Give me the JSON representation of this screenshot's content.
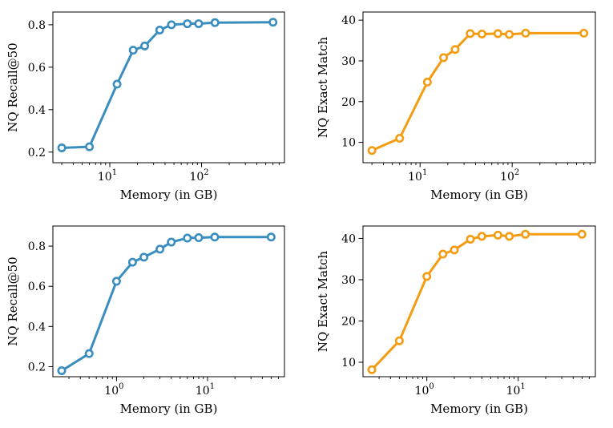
{
  "chart_data": [
    {
      "type": "line",
      "xscale": "log",
      "xlim": [
        2.4,
        800
      ],
      "ylim": [
        0.15,
        0.86
      ],
      "yticks": [
        0.2,
        0.4,
        0.6,
        0.8
      ],
      "ytick_labels": [
        "0.2",
        "0.4",
        "0.6",
        "0.8"
      ],
      "xticks": [
        10,
        100
      ],
      "xtick_labels": [
        {
          "base": "10",
          "exp": "1"
        },
        {
          "base": "10",
          "exp": "2"
        }
      ],
      "xlabel": "Memory (in GB)",
      "ylabel": "NQ Recall@50",
      "color": "#3a8ebf",
      "x": [
        3,
        6,
        12,
        18,
        24,
        35,
        47,
        70,
        93,
        140,
        600
      ],
      "y": [
        0.22,
        0.225,
        0.52,
        0.68,
        0.7,
        0.775,
        0.8,
        0.805,
        0.805,
        0.81,
        0.812
      ]
    },
    {
      "type": "line",
      "xscale": "log",
      "xlim": [
        2.4,
        800
      ],
      "ylim": [
        5,
        42
      ],
      "yticks": [
        10,
        20,
        30,
        40
      ],
      "ytick_labels": [
        "10",
        "20",
        "30",
        "40"
      ],
      "xticks": [
        10,
        100
      ],
      "xtick_labels": [
        {
          "base": "10",
          "exp": "1"
        },
        {
          "base": "10",
          "exp": "2"
        }
      ],
      "xlabel": "Memory (in GB)",
      "ylabel": "NQ Exact Match",
      "color": "#f39c12",
      "x": [
        3,
        6,
        12,
        18,
        24,
        35,
        47,
        70,
        93,
        140,
        600
      ],
      "y": [
        8,
        11,
        24.8,
        30.8,
        32.8,
        36.7,
        36.6,
        36.7,
        36.5,
        36.8,
        36.8
      ]
    },
    {
      "type": "line",
      "xscale": "log",
      "xlim": [
        0.2,
        70
      ],
      "ylim": [
        0.15,
        0.9
      ],
      "yticks": [
        0.2,
        0.4,
        0.6,
        0.8
      ],
      "ytick_labels": [
        "0.2",
        "0.4",
        "0.6",
        "0.8"
      ],
      "xticks": [
        1,
        10
      ],
      "xtick_labels": [
        {
          "base": "10",
          "exp": "0"
        },
        {
          "base": "10",
          "exp": "1"
        }
      ],
      "xlabel": "Memory (in GB)",
      "ylabel": "NQ Recall@50",
      "color": "#3a8ebf",
      "x": [
        0.25,
        0.5,
        1.0,
        1.5,
        2.0,
        3.0,
        4.0,
        6.0,
        8.0,
        12,
        50
      ],
      "y": [
        0.18,
        0.265,
        0.625,
        0.72,
        0.745,
        0.785,
        0.82,
        0.84,
        0.842,
        0.845,
        0.845
      ]
    },
    {
      "type": "line",
      "xscale": "log",
      "xlim": [
        0.2,
        70
      ],
      "ylim": [
        6.5,
        43
      ],
      "yticks": [
        10,
        20,
        30,
        40
      ],
      "ytick_labels": [
        "10",
        "20",
        "30",
        "40"
      ],
      "xticks": [
        1,
        10
      ],
      "xtick_labels": [
        {
          "base": "10",
          "exp": "0"
        },
        {
          "base": "10",
          "exp": "1"
        }
      ],
      "xlabel": "Memory (in GB)",
      "ylabel": "NQ Exact Match",
      "color": "#f39c12",
      "x": [
        0.25,
        0.5,
        1.0,
        1.5,
        2.0,
        3.0,
        4.0,
        6.0,
        8.0,
        12,
        50
      ],
      "y": [
        8.2,
        15.2,
        30.8,
        36.2,
        37.2,
        39.8,
        40.5,
        40.8,
        40.5,
        41,
        41
      ]
    }
  ]
}
